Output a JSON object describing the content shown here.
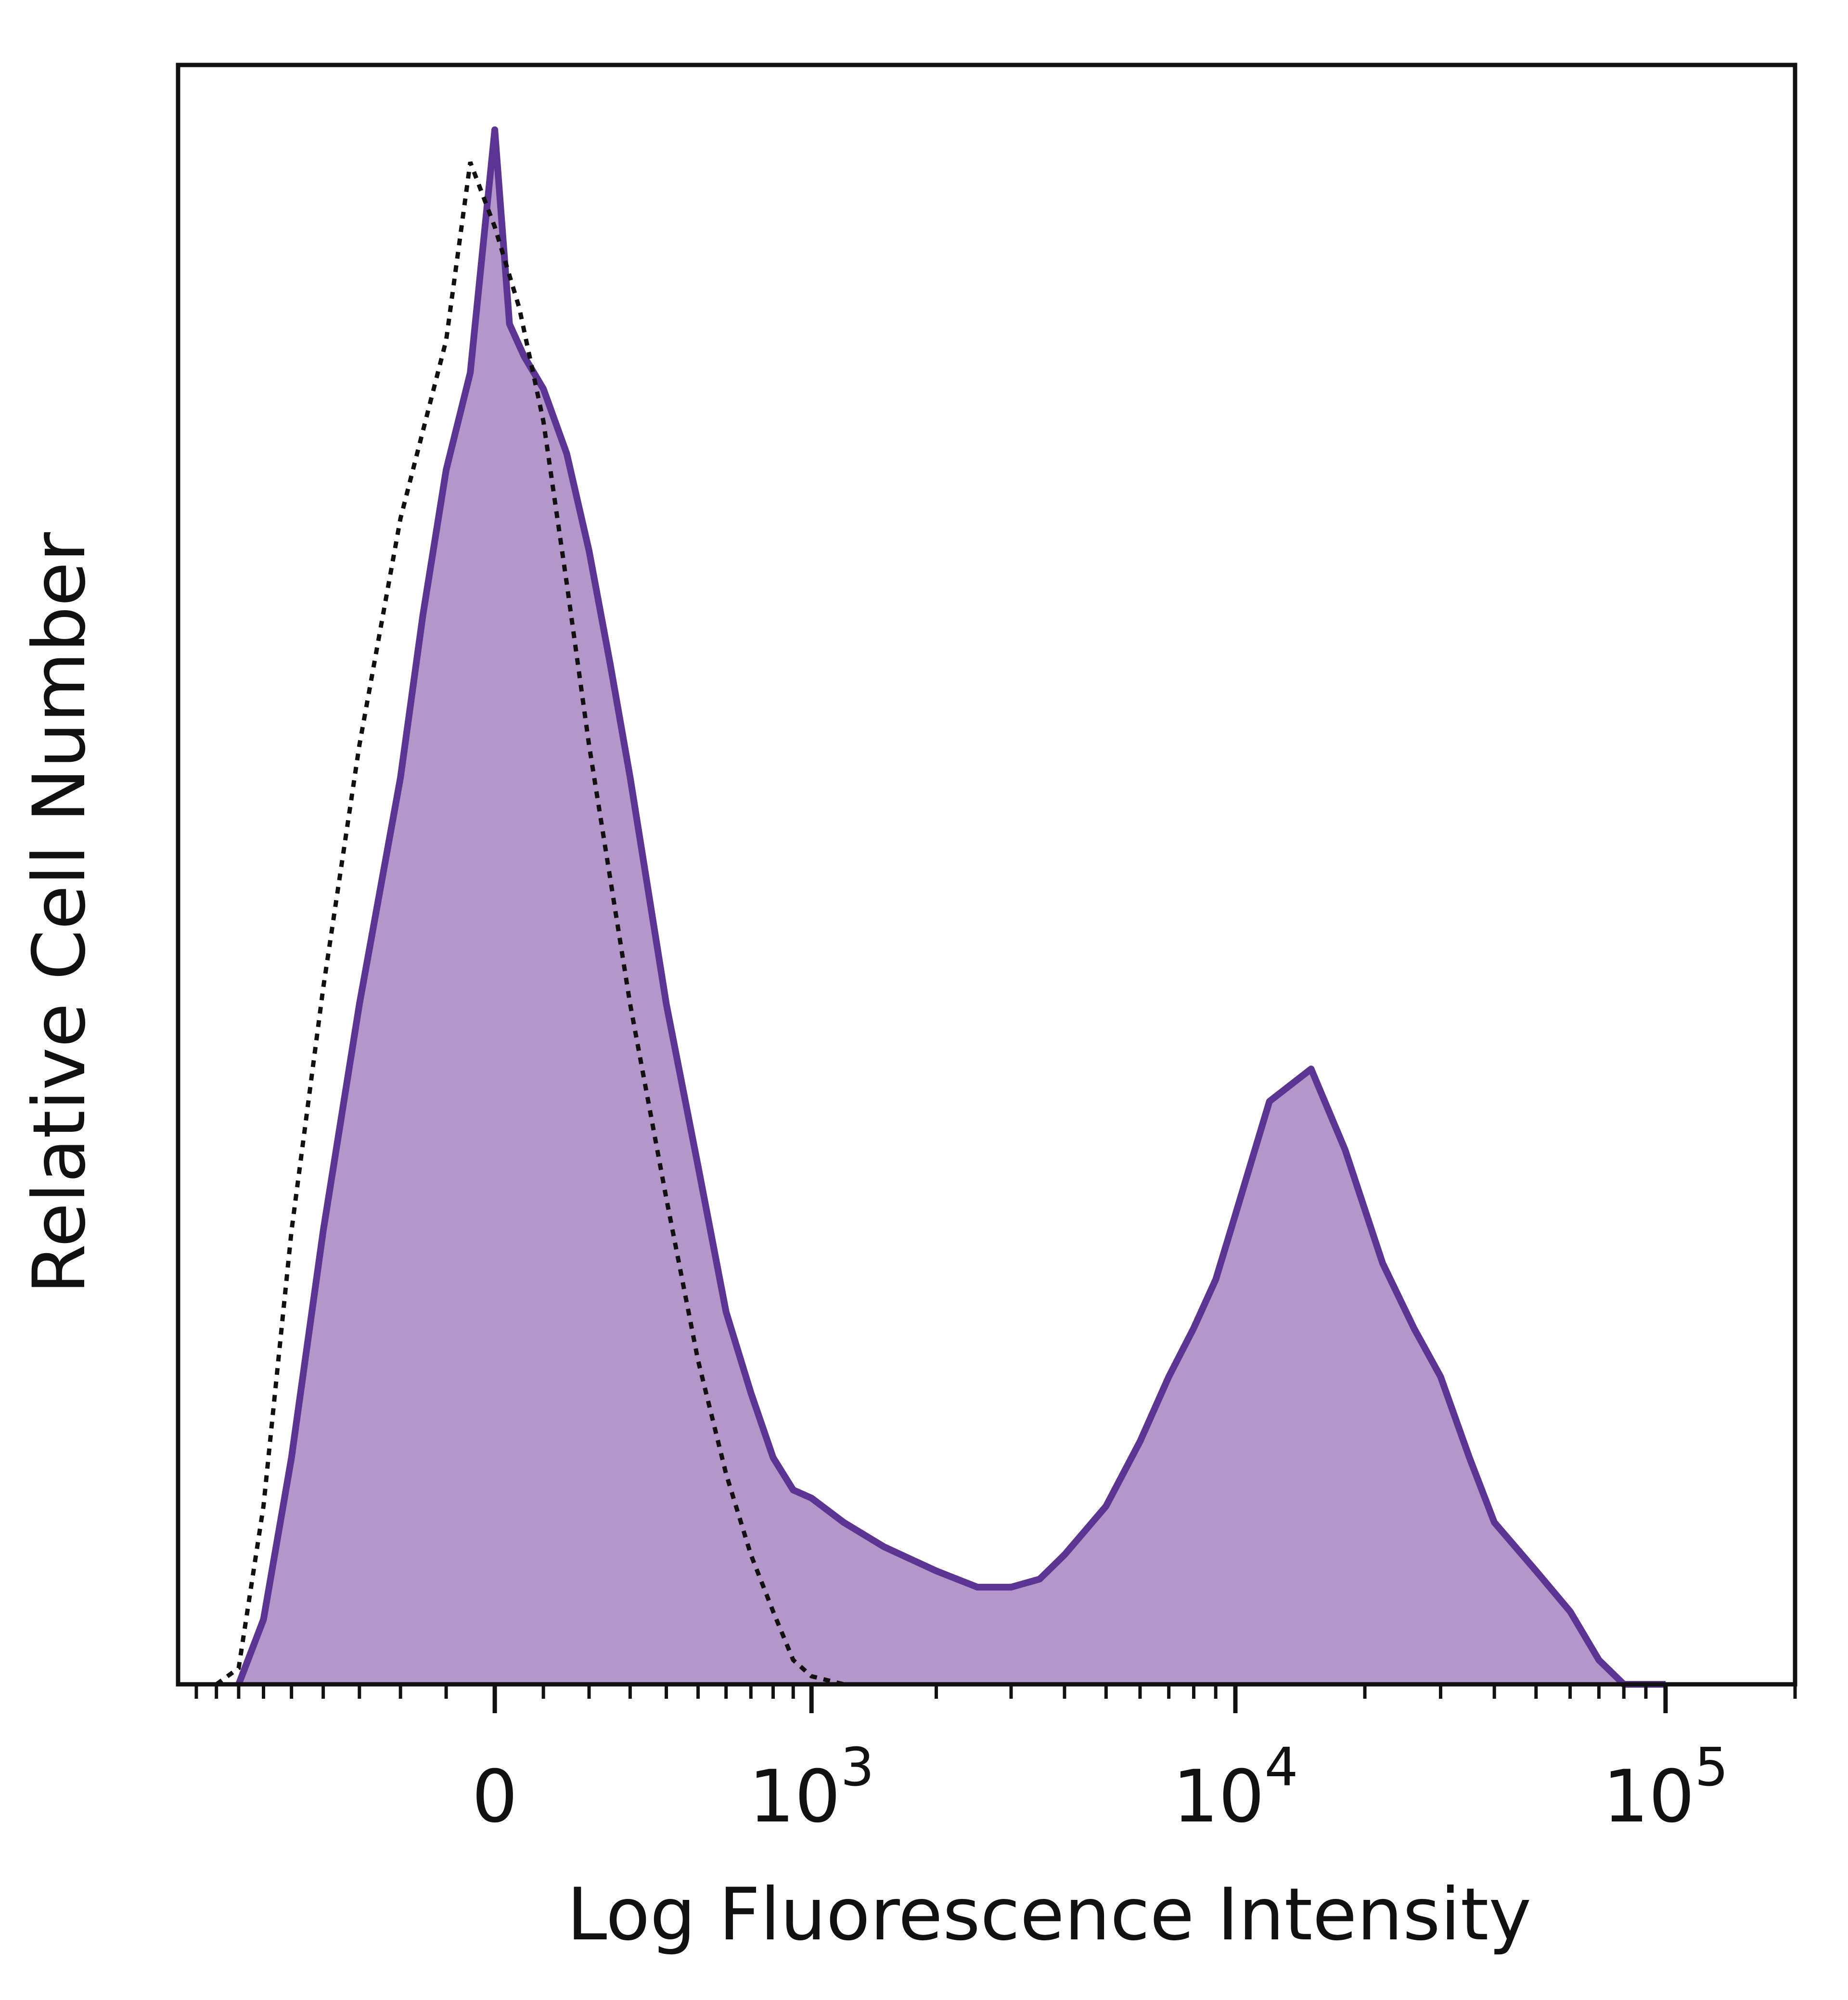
{
  "chart_data": {
    "type": "area",
    "xlabel": "Log Fluorescence Intensity",
    "ylabel": "Relative Cell Number",
    "x_scale": "biexponential",
    "x_ticks": [
      {
        "value": 0,
        "base": "0",
        "exp": ""
      },
      {
        "value": 1000,
        "base": "10",
        "exp": "3"
      },
      {
        "value": 10000,
        "base": "10",
        "exp": "4"
      },
      {
        "value": 100000,
        "base": "10",
        "exp": "5"
      }
    ],
    "ylim": [
      0,
      100
    ],
    "grid": false,
    "legend": "none",
    "series": [
      {
        "style": "filled-purple",
        "x": [
          -700,
          -600,
          -500,
          -400,
          -300,
          -200,
          -150,
          -100,
          -50,
          0,
          30,
          60,
          100,
          150,
          200,
          250,
          300,
          400,
          500,
          600,
          700,
          800,
          900,
          1000,
          1200,
          1500,
          2000,
          2500,
          3000,
          3500,
          4000,
          5000,
          6000,
          7000,
          8000,
          9000,
          10000,
          12000,
          15000,
          18000,
          22000,
          26000,
          30000,
          35000,
          40000,
          50000,
          60000,
          70000,
          80000,
          100000
        ],
        "y": [
          0,
          4,
          14,
          28,
          42,
          56,
          66,
          75,
          81,
          96,
          84,
          82,
          80,
          76,
          70,
          63,
          56,
          42,
          32,
          23,
          18,
          14,
          12,
          11.5,
          10,
          8.5,
          7,
          6,
          6,
          6.5,
          8,
          11,
          15,
          19,
          22,
          25,
          29,
          36,
          38,
          33,
          26,
          22,
          19,
          14,
          10,
          7,
          4.5,
          1.5,
          0,
          0
        ]
      },
      {
        "style": "dashed-black",
        "x": [
          -800,
          -700,
          -600,
          -500,
          -400,
          -300,
          -200,
          -100,
          -50,
          0,
          50,
          100,
          150,
          200,
          300,
          400,
          500,
          600,
          700,
          800,
          900,
          1000,
          1200,
          1500,
          2000,
          5000,
          100000
        ],
        "y": [
          0,
          1,
          11,
          28,
          43,
          58,
          72,
          83,
          94,
          90,
          85,
          78,
          68,
          58,
          42,
          30,
          20,
          13,
          8,
          4.5,
          1.5,
          0.5,
          0,
          0,
          0,
          0,
          0
        ]
      }
    ]
  },
  "colors": {
    "fill": "#b397c8",
    "outline": "#5c3494",
    "dashed": "#111111",
    "frame": "#111111"
  }
}
